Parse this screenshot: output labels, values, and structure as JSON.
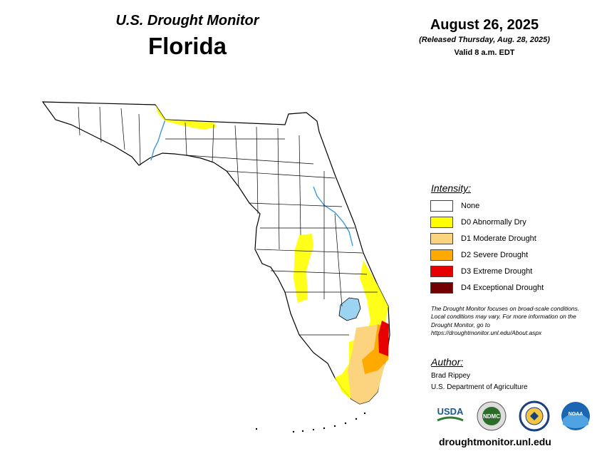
{
  "header": {
    "title": "U.S. Drought Monitor",
    "state": "Florida",
    "date": "August 26, 2025",
    "released": "(Released Thursday, Aug. 28, 2025)",
    "valid": "Valid 8 a.m. EDT"
  },
  "legend": {
    "title": "Intensity:",
    "items": [
      {
        "label": "None",
        "color": "#ffffff"
      },
      {
        "label": "D0 Abnormally Dry",
        "color": "#ffff00"
      },
      {
        "label": "D1 Moderate Drought",
        "color": "#fcd37f"
      },
      {
        "label": "D2 Severe Drought",
        "color": "#ffaa00"
      },
      {
        "label": "D3 Extreme Drought",
        "color": "#e60000"
      },
      {
        "label": "D4 Exceptional Drought",
        "color": "#730000"
      }
    ]
  },
  "note": "The Drought Monitor focuses on broad-scale conditions. Local conditions may vary. For more information on the Drought Monitor, go to https://droughtmonitor.unl.edu/About.aspx",
  "author": {
    "title": "Author:",
    "name": "Brad Rippey",
    "org": "U.S. Department of Agriculture"
  },
  "logos": [
    {
      "name": "usda-logo",
      "text": "USDA"
    },
    {
      "name": "ndmc-logo",
      "text": "NDMC"
    },
    {
      "name": "doc-seal",
      "text": ""
    },
    {
      "name": "noaa-logo",
      "text": "NOAA"
    }
  ],
  "website": "droughtmonitor.unl.edu",
  "colors": {
    "water": "#9cd3f0",
    "border": "#000000",
    "river": "#3a9ad9"
  }
}
